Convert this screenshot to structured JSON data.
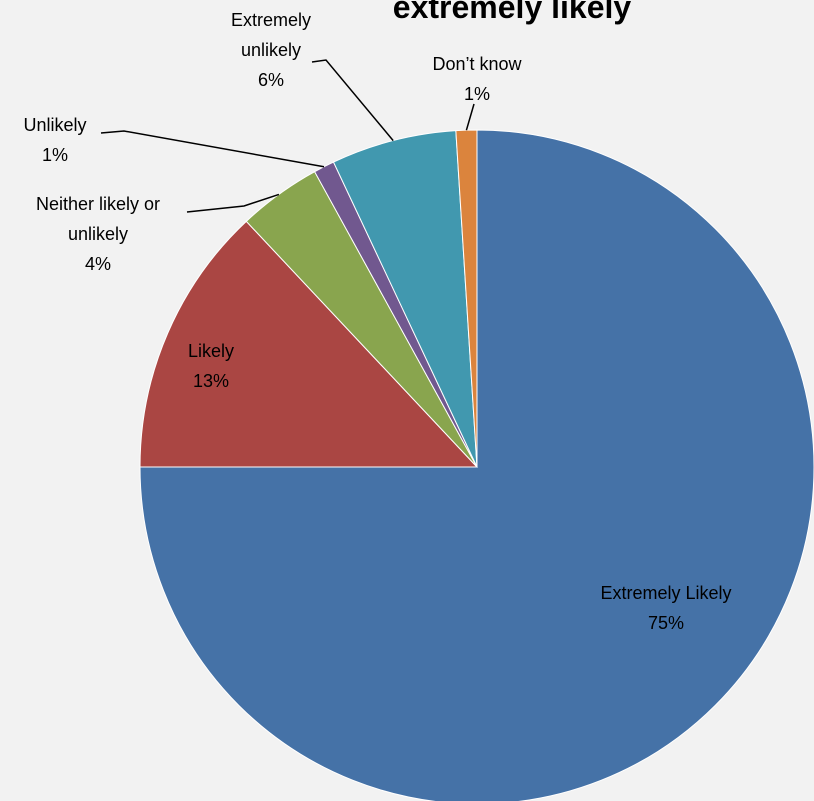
{
  "chart_data": {
    "type": "pie",
    "title": "extremely likely",
    "slices": [
      {
        "label": "Extremely Likely",
        "value": 75,
        "pct_label": "75%",
        "color": "#4572a7"
      },
      {
        "label": "Likely",
        "value": 13,
        "pct_label": "13%",
        "color": "#aa4643"
      },
      {
        "label": "Neither likely or unlikely",
        "value": 4,
        "pct_label": "4%",
        "color": "#89a54e"
      },
      {
        "label": "Unlikely",
        "value": 1,
        "pct_label": "1%",
        "color": "#71588f"
      },
      {
        "label": "Extremely unlikely",
        "value": 6,
        "pct_label": "6%",
        "color": "#4198af"
      },
      {
        "label": "Don’t know",
        "value": 1,
        "pct_label": "1%",
        "color": "#db843d"
      }
    ],
    "label_lines": {
      "extremely_likely": [
        "Extremely Likely"
      ],
      "likely": [
        "Likely"
      ],
      "neither": [
        "Neither likely or",
        "unlikely"
      ],
      "unlikely": [
        "Unlikely"
      ],
      "extremely_unlikely": [
        "Extremely",
        "unlikely"
      ],
      "dont_know": [
        "Don’t know"
      ]
    },
    "legend": "none",
    "leader_line_color": "#000000"
  }
}
